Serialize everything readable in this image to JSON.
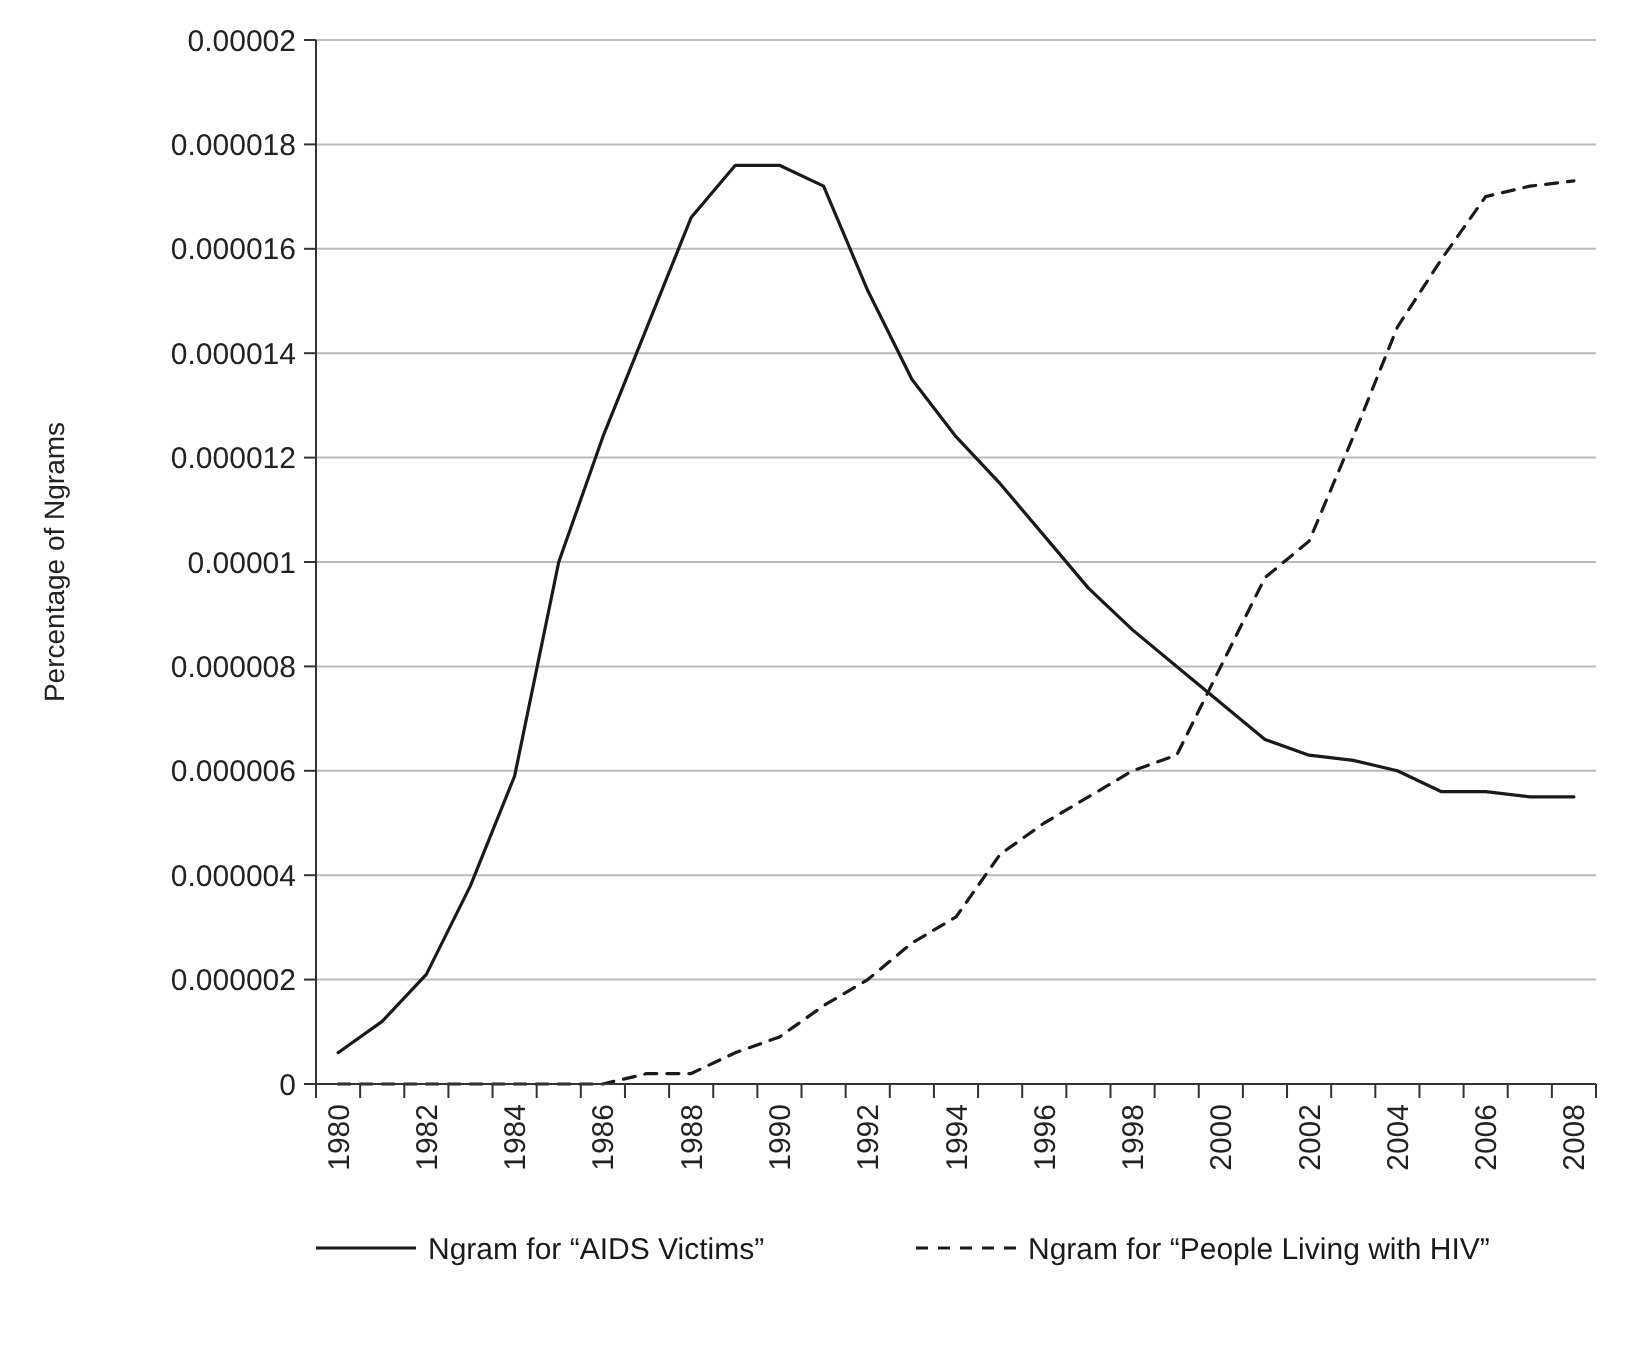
{
  "chart_data": {
    "type": "line",
    "ylabel": "Percentage of Ngrams",
    "categories": [
      "1980",
      null,
      "1982",
      null,
      "1984",
      null,
      "1986",
      null,
      "1988",
      null,
      "1990",
      null,
      "1992",
      null,
      "1994",
      null,
      "1996",
      null,
      "1998",
      null,
      "2000",
      null,
      "2002",
      null,
      "2004",
      null,
      "2006",
      null,
      "2008"
    ],
    "series": [
      {
        "name": "Ngram for “AIDS Victims”",
        "color": "#1a1a1a",
        "line_style": "solid",
        "values": [
          6e-07,
          1.2e-06,
          2.1e-06,
          3.8e-06,
          5.9e-06,
          1e-05,
          1.24e-05,
          1.45e-05,
          1.66e-05,
          1.76e-05,
          1.76e-05,
          1.72e-05,
          1.52e-05,
          1.35e-05,
          1.24e-05,
          1.15e-05,
          1.05e-05,
          9.5e-06,
          8.7e-06,
          8e-06,
          7.3e-06,
          6.6e-06,
          6.3e-06,
          6.2e-06,
          6e-06,
          5.6e-06,
          5.6e-06,
          5.5e-06,
          5.5e-06
        ]
      },
      {
        "name": "Ngram for “People Living with HIV”",
        "color": "#1a1a1a",
        "line_style": "dashed",
        "values": [
          0,
          0,
          0,
          0,
          0,
          0,
          0,
          2e-07,
          2e-07,
          6e-07,
          9e-07,
          1.5e-06,
          2e-06,
          2.7e-06,
          3.2e-06,
          4.4e-06,
          5e-06,
          5.5e-06,
          6e-06,
          6.3e-06,
          8e-06,
          9.7e-06,
          1.04e-05,
          1.24e-05,
          1.45e-05,
          1.58e-05,
          1.7e-05,
          1.72e-05,
          1.73e-05
        ]
      }
    ],
    "ylim": [
      0,
      2e-05
    ],
    "yticks": [
      0,
      {
        "value": 2e-06,
        "label": "0.000002"
      },
      {
        "value": 4e-06,
        "label": "0.000004"
      },
      {
        "value": 6e-06,
        "label": "0.000006"
      },
      {
        "value": 8e-06,
        "label": "0.000008"
      },
      {
        "value": 1e-05,
        "label": "0.00001"
      },
      {
        "value": 1.2e-05,
        "label": "0.000012"
      },
      {
        "value": 1.4e-05,
        "label": "0.000014"
      },
      {
        "value": 1.6e-05,
        "label": "0.000016"
      },
      {
        "value": 1.8e-05,
        "label": "0.000018"
      },
      {
        "value": 2e-05,
        "label": "0.00002"
      }
    ],
    "grid": "y",
    "legend": "bottom"
  }
}
